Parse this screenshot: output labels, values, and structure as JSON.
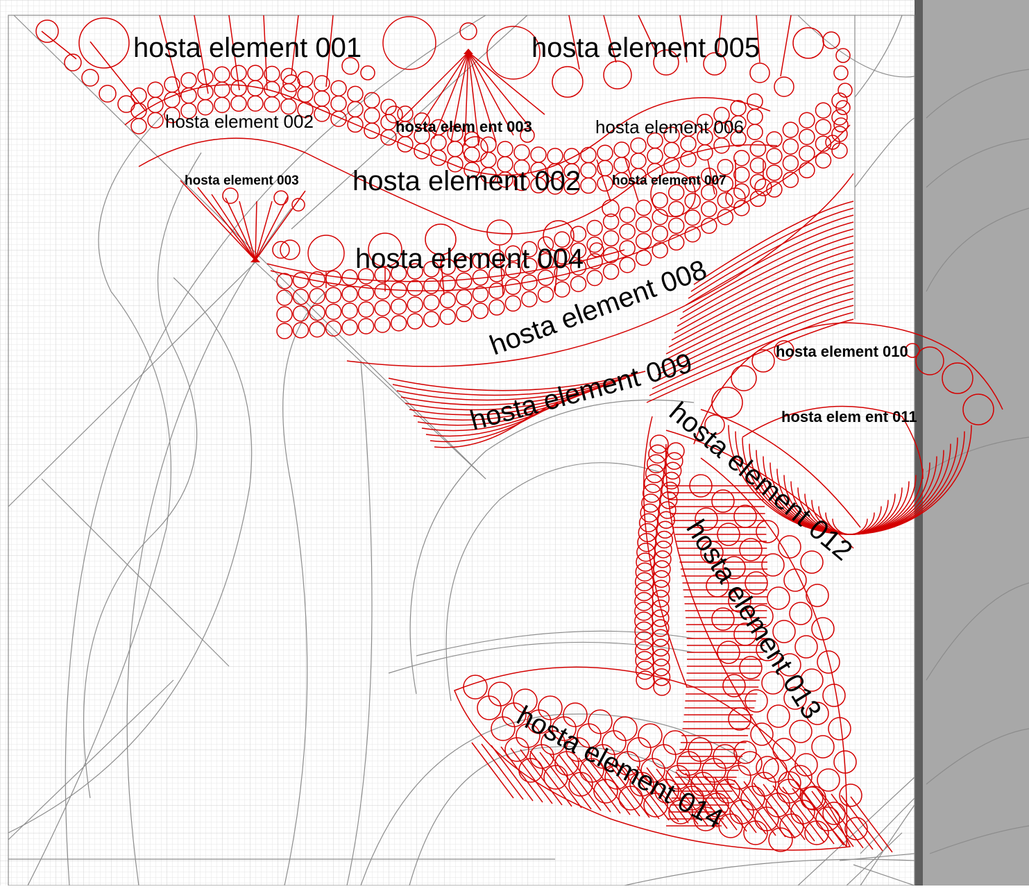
{
  "colors": {
    "page_background": "#ffffff",
    "grid_minor": "#e6e6e6",
    "grid_major": "#d2d2d2",
    "guide_lines": "#8c8c8c",
    "quilt_pattern": "#d40000",
    "label_text": "#000000",
    "side_panel": "#a8a8a8",
    "side_panel_border": "#5e5e5e"
  },
  "elements": [
    {
      "id": "001",
      "label": "hosta element 001"
    },
    {
      "id": "002a",
      "label": "hosta element 002"
    },
    {
      "id": "003a",
      "label": "hosta elem ent 003"
    },
    {
      "id": "003b",
      "label": "hosta element 003"
    },
    {
      "id": "002b",
      "label": "hosta element 002"
    },
    {
      "id": "004",
      "label": "hosta element 004"
    },
    {
      "id": "005",
      "label": "hosta element 005"
    },
    {
      "id": "006",
      "label": "hosta element 006"
    },
    {
      "id": "007",
      "label": "hosta element 007"
    },
    {
      "id": "008",
      "label": "hosta element 008"
    },
    {
      "id": "009",
      "label": "hosta element 009"
    },
    {
      "id": "010",
      "label": "hosta element 010"
    },
    {
      "id": "011",
      "label": "hosta elem ent 011"
    },
    {
      "id": "012",
      "label": "hosta element 012"
    },
    {
      "id": "013",
      "label": "hosta element 013"
    },
    {
      "id": "014",
      "label": "hosta element 014"
    }
  ]
}
